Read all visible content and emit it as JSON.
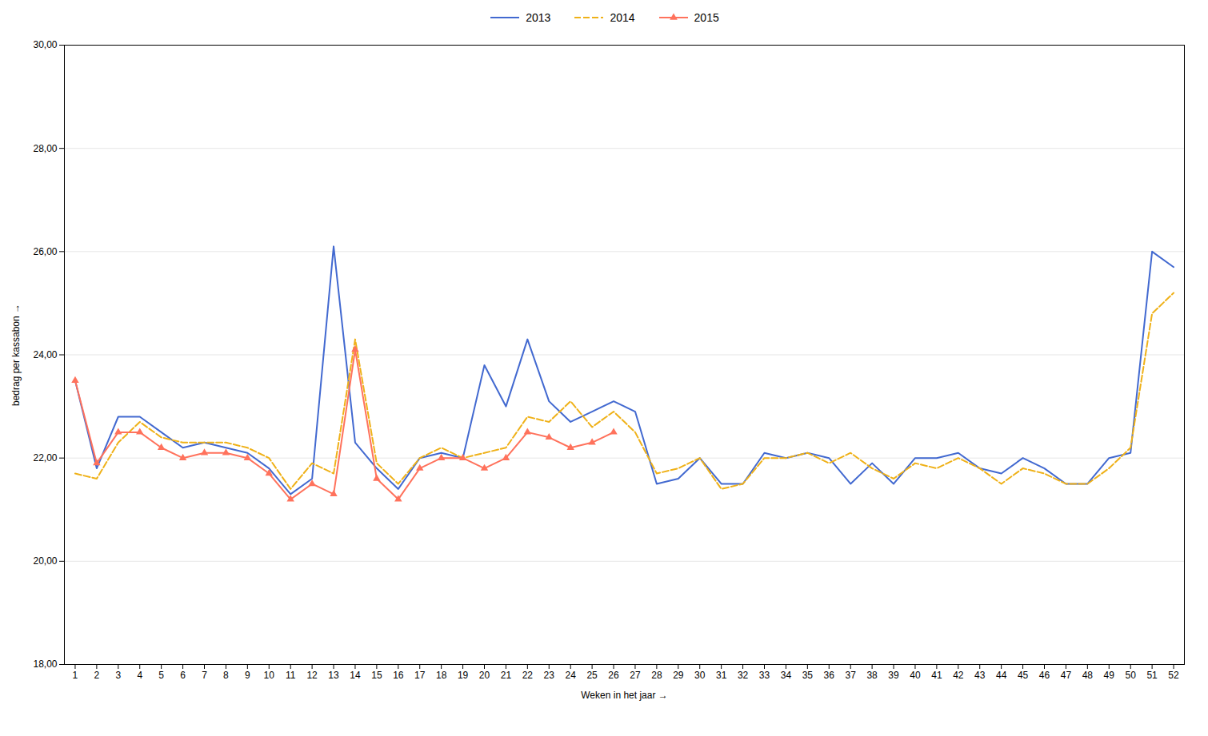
{
  "chart_data": {
    "type": "line",
    "xlabel": "Weken in het jaar",
    "ylabel": "bedrag per kassabon",
    "x": [
      1,
      2,
      3,
      4,
      5,
      6,
      7,
      8,
      9,
      10,
      11,
      12,
      13,
      14,
      15,
      16,
      17,
      18,
      19,
      20,
      21,
      22,
      23,
      24,
      25,
      26,
      27,
      28,
      29,
      30,
      31,
      32,
      33,
      34,
      35,
      36,
      37,
      38,
      39,
      40,
      41,
      42,
      43,
      44,
      45,
      46,
      47,
      48,
      49,
      50,
      51,
      52
    ],
    "xlim": [
      0.5,
      52.5
    ],
    "xticks": [
      1,
      2,
      3,
      4,
      5,
      6,
      7,
      8,
      9,
      10,
      11,
      12,
      13,
      14,
      15,
      16,
      17,
      18,
      19,
      20,
      21,
      22,
      23,
      24,
      25,
      26,
      27,
      28,
      29,
      30,
      31,
      32,
      33,
      34,
      35,
      36,
      37,
      38,
      39,
      40,
      41,
      42,
      43,
      44,
      45,
      46,
      47,
      48,
      49,
      50,
      51,
      52
    ],
    "ylim": [
      18.0,
      30.0
    ],
    "yticks": [
      {
        "value": 18.0,
        "label": "18,00"
      },
      {
        "value": 20.0,
        "label": "20,00"
      },
      {
        "value": 22.0,
        "label": "22,00"
      },
      {
        "value": 24.0,
        "label": "24,00"
      },
      {
        "value": 26.0,
        "label": "26,00"
      },
      {
        "value": 28.0,
        "label": "28,00"
      },
      {
        "value": 30.0,
        "label": "30,00"
      }
    ],
    "grid": true,
    "legend": "top",
    "series": [
      {
        "name": "2013",
        "line_style": "solid",
        "values": [
          23.5,
          21.8,
          22.8,
          22.8,
          22.5,
          22.2,
          22.3,
          22.2,
          22.1,
          21.8,
          21.3,
          21.6,
          26.1,
          22.3,
          21.8,
          21.4,
          22.0,
          22.1,
          22.0,
          23.8,
          23.0,
          24.3,
          23.1,
          22.7,
          22.9,
          23.1,
          22.9,
          21.5,
          21.6,
          22.0,
          21.5,
          21.5,
          22.1,
          22.0,
          22.1,
          22.0,
          21.5,
          21.9,
          21.5,
          22.0,
          22.0,
          22.1,
          21.8,
          21.7,
          22.0,
          21.8,
          21.5,
          21.5,
          22.0,
          22.1,
          26.0,
          25.7
        ]
      },
      {
        "name": "2014",
        "line_style": "dashed",
        "values": [
          21.7,
          21.6,
          22.3,
          22.7,
          22.4,
          22.3,
          22.3,
          22.3,
          22.2,
          22.0,
          21.4,
          21.9,
          21.7,
          24.3,
          21.9,
          21.5,
          22.0,
          22.2,
          22.0,
          22.1,
          22.2,
          22.8,
          22.7,
          23.1,
          22.6,
          22.9,
          22.5,
          21.7,
          21.8,
          22.0,
          21.4,
          21.5,
          22.0,
          22.0,
          22.1,
          21.9,
          22.1,
          21.8,
          21.6,
          21.9,
          21.8,
          22.0,
          21.8,
          21.5,
          21.8,
          21.7,
          21.5,
          21.5,
          21.8,
          22.2,
          24.8,
          25.2
        ]
      },
      {
        "name": "2015",
        "line_style": "solid",
        "marker": "triangle",
        "values": [
          23.5,
          21.9,
          22.5,
          22.5,
          22.2,
          22.0,
          22.1,
          22.1,
          22.0,
          21.7,
          21.2,
          21.5,
          21.3,
          24.1,
          21.6,
          21.2,
          21.8,
          22.0,
          22.0,
          21.8,
          22.0,
          22.5,
          22.4,
          22.2,
          22.3,
          22.5,
          null,
          null,
          null,
          null,
          null,
          null,
          null,
          null,
          null,
          null,
          null,
          null,
          null,
          null,
          null,
          null,
          null,
          null,
          null,
          null,
          null,
          null,
          null,
          null,
          null,
          null
        ]
      }
    ]
  }
}
